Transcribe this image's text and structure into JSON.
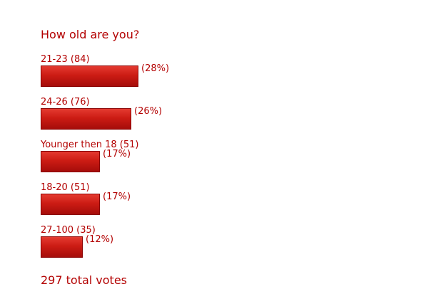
{
  "poll": {
    "title": "How old are you?",
    "total": "297 total votes"
  },
  "colors": {
    "text": "#b30000",
    "bar": "#cc1c14",
    "bar_border": "#8a0000"
  },
  "chart_data": {
    "type": "bar",
    "orientation": "horizontal",
    "title": "How old are you?",
    "categories": [
      "21-23",
      "24-26",
      "Younger then 18",
      "18-20",
      "27-100"
    ],
    "values": [
      84,
      76,
      51,
      51,
      35
    ],
    "percents": [
      28,
      26,
      17,
      17,
      12
    ],
    "labels": [
      "21-23 (84)",
      "24-26 (76)",
      "Younger then 18 (51)",
      "18-20 (51)",
      "27-100 (35)"
    ],
    "pct_labels": [
      "(28%)",
      "(26%)",
      "(17%)",
      "(17%)",
      "(12%)"
    ],
    "total_votes": 297
  }
}
